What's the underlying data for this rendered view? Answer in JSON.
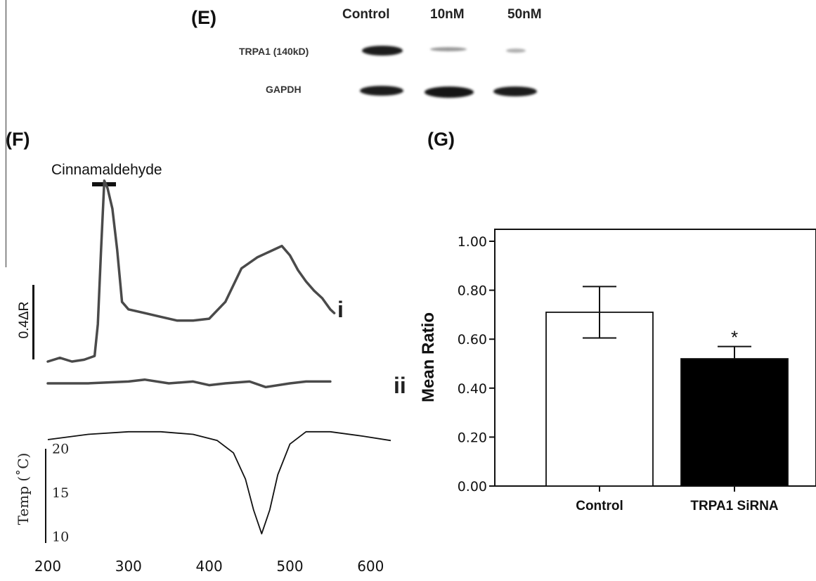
{
  "panel_e": {
    "letter": "(E)",
    "lanes": [
      "Control",
      "10nM",
      "50nM"
    ],
    "rows": [
      "TRPA1 (140kD)",
      "GAPDH"
    ]
  },
  "panel_f": {
    "letter": "(F)",
    "stimulus_label": "Cinnamaldehyde",
    "scale_label": "0.4ΔR",
    "trace_labels": [
      "i",
      "ii"
    ],
    "temp_axis_label": "Temp (˚C)",
    "temp_ticks": [
      "20",
      "15",
      "10"
    ],
    "x_ticks": [
      "200",
      "300",
      "400",
      "500",
      "600"
    ]
  },
  "panel_g": {
    "letter": "(G)",
    "significance_mark": "*"
  },
  "chart_data": [
    {
      "type": "line",
      "series": [
        {
          "x": [
            200,
            215,
            230,
            245,
            258,
            262,
            266,
            270,
            274,
            280,
            286,
            292,
            300,
            320,
            340,
            360,
            380,
            400,
            420,
            440,
            460,
            470,
            480,
            485,
            490,
            500,
            510,
            520,
            530,
            540,
            550,
            555
          ],
          "y": [
            0.0,
            0.02,
            0.0,
            0.01,
            0.03,
            0.2,
            0.6,
            0.97,
            0.93,
            0.82,
            0.6,
            0.32,
            0.28,
            0.26,
            0.24,
            0.22,
            0.22,
            0.23,
            0.32,
            0.5,
            0.56,
            0.58,
            0.6,
            0.61,
            0.62,
            0.57,
            0.49,
            0.43,
            0.38,
            0.34,
            0.28,
            0.26
          ]
        },
        {
          "x": [
            200,
            250,
            300,
            320,
            350,
            380,
            400,
            420,
            450,
            470,
            500,
            520,
            550
          ],
          "y": [
            0.0,
            0.0,
            0.01,
            0.02,
            0.0,
            0.01,
            -0.01,
            0.0,
            0.01,
            -0.02,
            0.0,
            0.01,
            0.01
          ]
        }
      ],
      "temperature": {
        "x": [
          200,
          250,
          300,
          340,
          380,
          410,
          430,
          445,
          455,
          465,
          475,
          485,
          500,
          520,
          550,
          590,
          625
        ],
        "y": [
          21.0,
          21.6,
          21.9,
          21.9,
          21.6,
          20.9,
          19.5,
          16.5,
          13.0,
          10.3,
          13.0,
          17.0,
          20.5,
          21.9,
          21.9,
          21.4,
          20.9
        ],
        "ylim": [
          7,
          23
        ]
      },
      "xlim": [
        200,
        625
      ],
      "y_scale_bar": 0.4
    },
    {
      "type": "bar",
      "categories": [
        "Control",
        "TRPA1 SiRNA"
      ],
      "values": [
        0.71,
        0.52
      ],
      "errors": [
        0.105,
        0.05
      ],
      "bar_colors": [
        "#ffffff",
        "#000000"
      ],
      "ylabel": "Mean Ratio",
      "ylim": [
        0,
        1.0
      ],
      "yticks": [
        "0.00",
        "0.20",
        "0.40",
        "0.60",
        "0.80",
        "1.00"
      ]
    }
  ]
}
